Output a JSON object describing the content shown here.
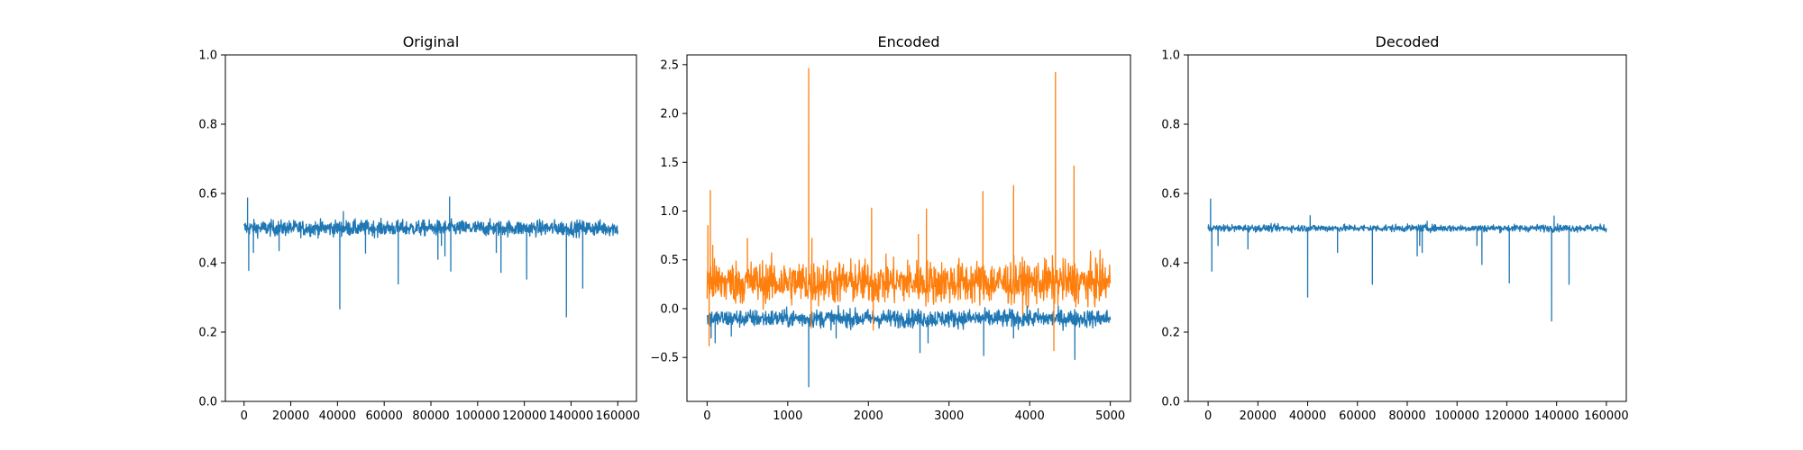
{
  "chart_data": [
    {
      "type": "line",
      "title": "Original",
      "xlabel": "",
      "ylabel": "",
      "xlim": [
        -8000,
        168000
      ],
      "ylim": [
        0.0,
        1.0
      ],
      "xticks": [
        0,
        20000,
        40000,
        60000,
        80000,
        100000,
        120000,
        140000,
        160000
      ],
      "xtick_labels": [
        "0",
        "20000",
        "40000",
        "60000",
        "80000",
        "100000",
        "120000",
        "140000",
        "160000"
      ],
      "yticks": [
        0.0,
        0.2,
        0.4,
        0.6,
        0.8,
        1.0
      ],
      "ytick_labels": [
        "0.0",
        "0.2",
        "0.4",
        "0.6",
        "0.8",
        "1.0"
      ],
      "grid": false,
      "series": [
        {
          "color": "#1f77b4",
          "baseline": 0.5,
          "noise": 0.011,
          "x_range": [
            0,
            160000
          ],
          "points": 1100,
          "spikes": [
            [
              1500,
              0.587
            ],
            [
              2000,
              0.378
            ],
            [
              4000,
              0.43
            ],
            [
              15000,
              0.435
            ],
            [
              41000,
              0.267
            ],
            [
              42500,
              0.548
            ],
            [
              52000,
              0.428
            ],
            [
              66000,
              0.339
            ],
            [
              83000,
              0.41
            ],
            [
              84500,
              0.45
            ],
            [
              86000,
              0.42
            ],
            [
              88000,
              0.59
            ],
            [
              88500,
              0.376
            ],
            [
              108000,
              0.43
            ],
            [
              110000,
              0.372
            ],
            [
              121000,
              0.353
            ],
            [
              138000,
              0.244
            ],
            [
              145000,
              0.327
            ]
          ]
        }
      ]
    },
    {
      "type": "line",
      "title": "Encoded",
      "xlabel": "",
      "ylabel": "",
      "xlim": [
        -250,
        5250
      ],
      "ylim": [
        -0.95,
        2.6
      ],
      "xticks": [
        0,
        1000,
        2000,
        3000,
        4000,
        5000
      ],
      "xtick_labels": [
        "0",
        "1000",
        "2000",
        "3000",
        "4000",
        "5000"
      ],
      "yticks": [
        -0.5,
        0.0,
        0.5,
        1.0,
        1.5,
        2.0,
        2.5
      ],
      "ytick_labels": [
        "−0.5",
        "0.0",
        "0.5",
        "1.0",
        "1.5",
        "2.0",
        "2.5"
      ],
      "grid": false,
      "series": [
        {
          "color": "#1f77b4",
          "baseline": -0.1,
          "noise": 0.045,
          "x_range": [
            0,
            5000
          ],
          "points": 1100,
          "spikes": [
            [
              50,
              -0.3
            ],
            [
              100,
              -0.35
            ],
            [
              300,
              -0.28
            ],
            [
              1260,
              -0.8
            ],
            [
              1600,
              -0.3
            ],
            [
              2640,
              -0.45
            ],
            [
              2740,
              -0.35
            ],
            [
              3430,
              -0.48
            ],
            [
              3800,
              -0.3
            ],
            [
              4560,
              -0.52
            ]
          ]
        },
        {
          "color": "#ff7f0e",
          "baseline": 0.27,
          "noise": 0.11,
          "x_range": [
            0,
            5000
          ],
          "points": 1100,
          "spikes": [
            [
              10,
              0.85
            ],
            [
              25,
              -0.38
            ],
            [
              40,
              1.21
            ],
            [
              70,
              0.65
            ],
            [
              500,
              0.72
            ],
            [
              1260,
              2.46
            ],
            [
              1290,
              -0.2
            ],
            [
              1300,
              0.72
            ],
            [
              2040,
              1.03
            ],
            [
              2060,
              -0.22
            ],
            [
              2620,
              0.76
            ],
            [
              2720,
              1.02
            ],
            [
              3420,
              1.2
            ],
            [
              3800,
              1.26
            ],
            [
              4300,
              -0.43
            ],
            [
              4320,
              2.42
            ],
            [
              4550,
              1.46
            ],
            [
              4900,
              0.45
            ]
          ]
        }
      ]
    },
    {
      "type": "line",
      "title": "Decoded",
      "xlabel": "",
      "ylabel": "",
      "xlim": [
        -8000,
        168000
      ],
      "ylim": [
        0.0,
        1.0
      ],
      "xticks": [
        0,
        20000,
        40000,
        60000,
        80000,
        100000,
        120000,
        140000,
        160000
      ],
      "xtick_labels": [
        "0",
        "20000",
        "40000",
        "60000",
        "80000",
        "100000",
        "120000",
        "140000",
        "160000"
      ],
      "yticks": [
        0.0,
        0.2,
        0.4,
        0.6,
        0.8,
        1.0
      ],
      "ytick_labels": [
        "0.0",
        "0.2",
        "0.4",
        "0.6",
        "0.8",
        "1.0"
      ],
      "grid": false,
      "series": [
        {
          "color": "#1f77b4",
          "baseline": 0.5,
          "noise": 0.005,
          "x_range": [
            0,
            160000
          ],
          "points": 1100,
          "spikes": [
            [
              1000,
              0.584
            ],
            [
              1500,
              0.376
            ],
            [
              4000,
              0.45
            ],
            [
              16000,
              0.44
            ],
            [
              40000,
              0.301
            ],
            [
              41000,
              0.536
            ],
            [
              52000,
              0.43
            ],
            [
              66000,
              0.338
            ],
            [
              84000,
              0.42
            ],
            [
              85000,
              0.45
            ],
            [
              86000,
              0.43
            ],
            [
              88000,
              0.52
            ],
            [
              108000,
              0.45
            ],
            [
              110000,
              0.395
            ],
            [
              121000,
              0.342
            ],
            [
              138000,
              0.232
            ],
            [
              139000,
              0.535
            ],
            [
              145000,
              0.338
            ]
          ]
        }
      ]
    }
  ]
}
